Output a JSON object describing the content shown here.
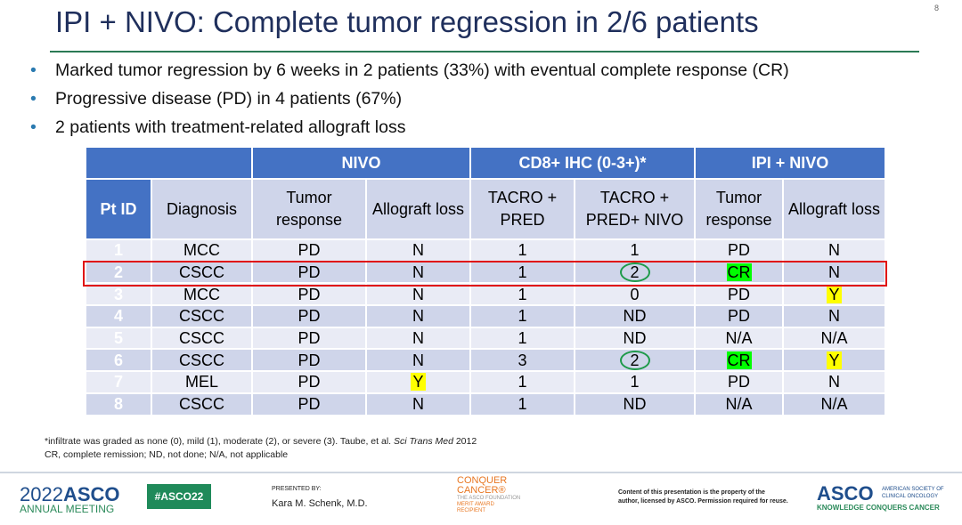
{
  "title": "IPI + NIVO: Complete tumor regression in 2/6 patients",
  "page_number": "8",
  "bullets": [
    "Marked tumor regression by 6 weeks in 2 patients (33%) with eventual complete response (CR)",
    "Progressive disease (PD) in 4 patients (67%)",
    "2 patients with treatment-related allograft loss"
  ],
  "table": {
    "group_headers": [
      "NIVO",
      "CD8+ IHC (0-3+)*",
      "IPI + NIVO"
    ],
    "columns": [
      "Pt ID",
      "Diagnosis",
      "Tumor response",
      "Allograft loss",
      "TACRO + PRED",
      "TACRO + PRED+ NIVO",
      "Tumor response",
      "Allograft loss"
    ],
    "rows": [
      [
        "1",
        "MCC",
        "PD",
        "N",
        "1",
        "1",
        "PD",
        "N"
      ],
      [
        "2",
        "CSCC",
        "PD",
        "N",
        "1",
        "2",
        "CR",
        "N"
      ],
      [
        "3",
        "MCC",
        "PD",
        "N",
        "1",
        "0",
        "PD",
        "Y"
      ],
      [
        "4",
        "CSCC",
        "PD",
        "N",
        "1",
        "ND",
        "PD",
        "N"
      ],
      [
        "5",
        "CSCC",
        "PD",
        "N",
        "1",
        "ND",
        "N/A",
        "N/A"
      ],
      [
        "6",
        "CSCC",
        "PD",
        "N",
        "3",
        "2",
        "CR",
        "Y"
      ],
      [
        "7",
        "MEL",
        "PD",
        "Y",
        "1",
        "1",
        "PD",
        "N"
      ],
      [
        "8",
        "CSCC",
        "PD",
        "N",
        "1",
        "ND",
        "N/A",
        "N/A"
      ]
    ],
    "highlighted_row": "2",
    "colors": {
      "header": "#4472c4",
      "cr_highlight": "#00ff00",
      "y_highlight": "#ffff00",
      "circle": "#1e9a4a",
      "row_box": "#e01010"
    }
  },
  "footnotes": [
    "*infiltrate was graded as none (0), mild (1), moderate (2), or severe (3). Taube, et al. ",
    "Sci Trans Med",
    " 2012",
    "CR, complete remission; ND, not done; N/A, not applicable"
  ],
  "footer": {
    "meeting_year": "2022",
    "meeting_org": "ASCO",
    "meeting_sub": "ANNUAL MEETING",
    "hashtag": "#ASCO22",
    "presented_by": "PRESENTED BY:",
    "presenter": "Kara M. Schenk, M.D.",
    "conquer": "CONQUER",
    "cancer": "CANCER®",
    "foundation": "THE ASCO FOUNDATION",
    "merit": "MERIT AWARD RECIPIENT",
    "copyright": [
      "Content of this presentation is the property of the",
      "author, licensed by ASCO. Permission required for reuse."
    ],
    "asco": "ASCO",
    "asco_full": [
      "AMERICAN SOCIETY OF",
      "CLINICAL ONCOLOGY"
    ],
    "tagline": "KNOWLEDGE CONQUERS CANCER"
  }
}
